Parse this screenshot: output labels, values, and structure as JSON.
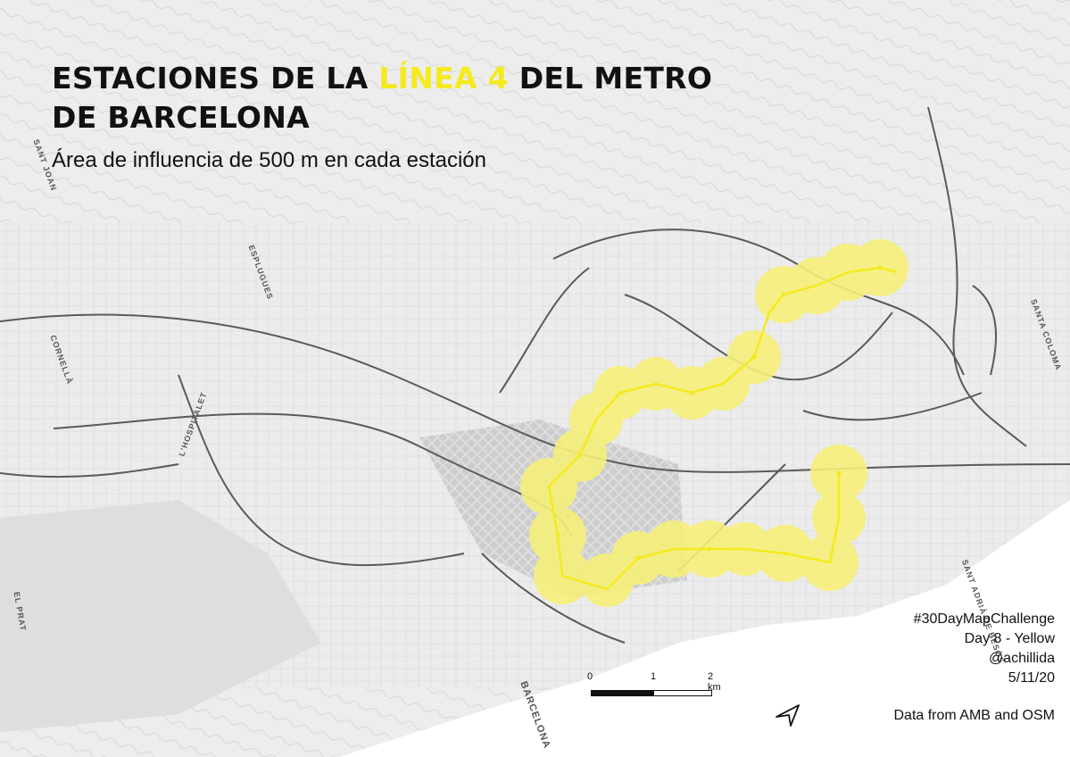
{
  "title": {
    "part1": "ESTACIONES DE LA",
    "highlight": "LÍNEA 4",
    "part2": "DEL METRO",
    "line2": "DE BARCELONA",
    "highlight_color": "#f4ea1e"
  },
  "subtitle": "Área de influencia de 500 m en cada estación",
  "credits": {
    "hashtag": "#30DayMapChallenge",
    "day": "Day 8 - Yellow",
    "author": "@achillida",
    "date": "5/11/20"
  },
  "source": "Data from AMB and OSM",
  "scale": {
    "labels": [
      "0",
      "1",
      "2 km"
    ]
  },
  "map_labels": {
    "barcelona": "BARCELONA",
    "hospitalet": "L'HOSPITALET",
    "cornella": "CORNELLÀ",
    "santa_coloma": "SANTA COLOMA",
    "sant_adria": "SANT ADRIÀ DE BESÒS",
    "el_prat": "EL PRAT",
    "esplugues": "ESPLUGUES",
    "sant_joan": "SANT JOAN"
  },
  "colors": {
    "buffer": "#f6f07a",
    "metro_line": "#f4ea1e",
    "sea": "#ffffff",
    "land": "#e9e9e9",
    "rail": "#555555"
  },
  "icons": {
    "north_arrow": "north-arrow-icon"
  }
}
